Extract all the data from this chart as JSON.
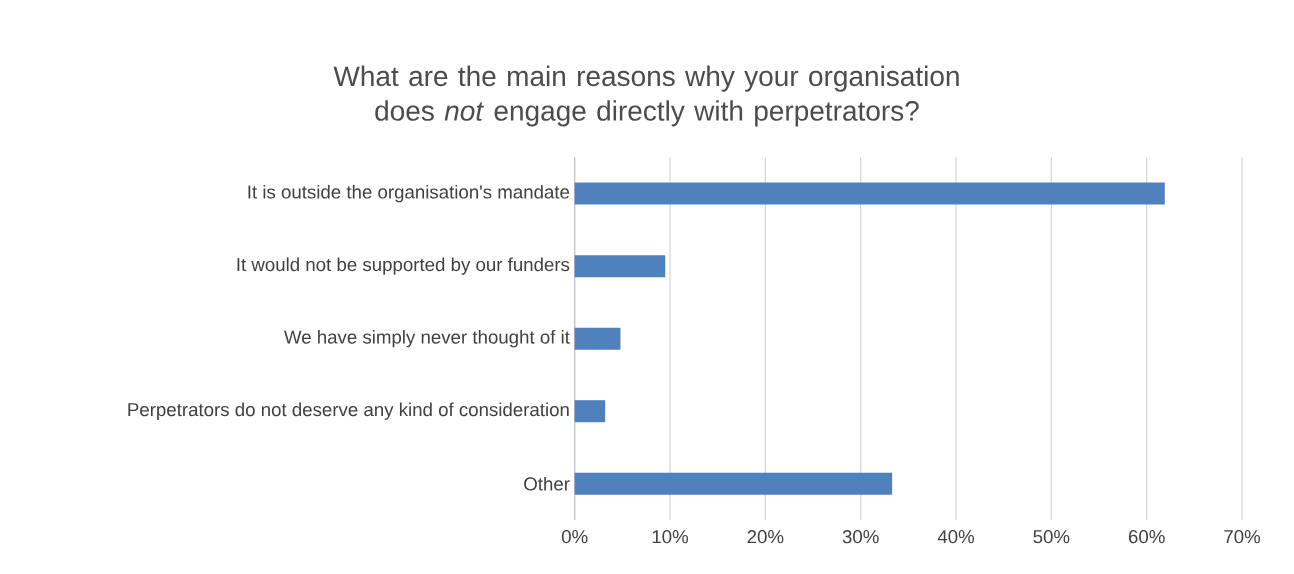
{
  "chart_data": {
    "type": "bar",
    "orientation": "horizontal",
    "title": "What are the main reasons why your organisation does *not* engage directly with perpetrators?",
    "categories": [
      "It is outside the organisation's mandate",
      "It would not be supported by our funders",
      "We have simply never thought of it",
      "Perpetrators do not deserve any kind of consideration",
      "Other"
    ],
    "values": [
      61.9,
      9.5,
      4.8,
      3.2,
      33.3
    ],
    "color": "#4f81bd",
    "xlim": [
      0,
      70
    ],
    "xticks": [
      {
        "value": 0,
        "label": "0%"
      },
      {
        "value": 10,
        "label": "10%"
      },
      {
        "value": 20,
        "label": "20%"
      },
      {
        "value": 30,
        "label": "30%"
      },
      {
        "value": 40,
        "label": "40%"
      },
      {
        "value": 50,
        "label": "50%"
      },
      {
        "value": 60,
        "label": "60%"
      },
      {
        "value": 70,
        "label": "70%"
      }
    ],
    "grid": "x"
  }
}
